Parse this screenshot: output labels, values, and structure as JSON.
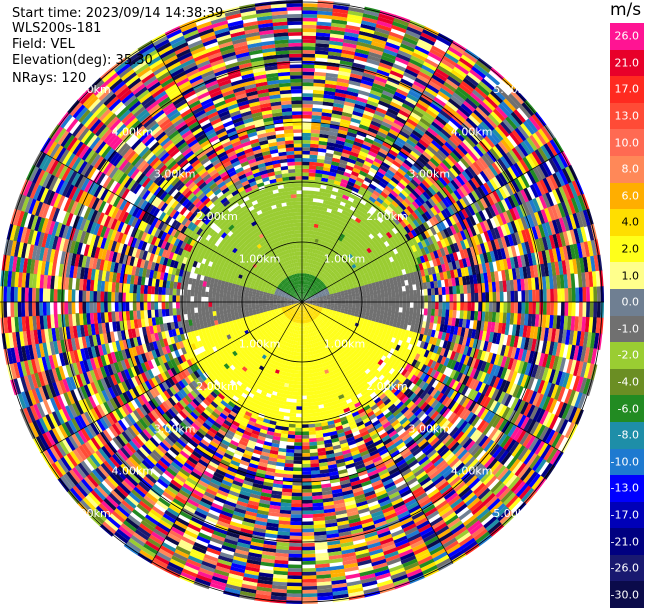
{
  "header": {
    "start_time": "Start time: 2023/09/14 14:38:39",
    "instrument": "WLS200s-181",
    "field": "Field: VEL",
    "elevation": "Elevation(deg): 35.30",
    "nrays": "NRays: 120"
  },
  "colorbar": {
    "unit": "m/s",
    "bins": [
      {
        "label": "26.0",
        "color": "#ff1493"
      },
      {
        "label": "21.0",
        "color": "#e8002a"
      },
      {
        "label": "17.0",
        "color": "#ff2a20"
      },
      {
        "label": "13.0",
        "color": "#ff4b36"
      },
      {
        "label": "10.0",
        "color": "#ff6a52"
      },
      {
        "label": "8.0",
        "color": "#ff8858"
      },
      {
        "label": "6.0",
        "color": "#ffae00"
      },
      {
        "label": "4.0",
        "color": "#ffde00"
      },
      {
        "label": "2.0",
        "color": "#ffff1a"
      },
      {
        "label": "1.0",
        "color": "#ffff8c"
      },
      {
        "label": "0.0",
        "color": "#6f7f92"
      },
      {
        "label": "-1.0",
        "color": "#707070"
      },
      {
        "label": "-2.0",
        "color": "#9acd32"
      },
      {
        "label": "-4.0",
        "color": "#6b8e23"
      },
      {
        "label": "-6.0",
        "color": "#228b22"
      },
      {
        "label": "-8.0",
        "color": "#1e8ea8"
      },
      {
        "label": "-10.0",
        "color": "#1e7ad0"
      },
      {
        "label": "-13.0",
        "color": "#0000ff"
      },
      {
        "label": "-17.0",
        "color": "#0000b8"
      },
      {
        "label": "-21.0",
        "color": "#000080"
      },
      {
        "label": "-26.0",
        "color": "#191970"
      },
      {
        "label": "-30.0",
        "color": "#0b0b4a"
      }
    ]
  },
  "chart_data": {
    "type": "heatmap",
    "projection": "polar PPI",
    "n_rays": 120,
    "range_ring_labels": [
      "1.00km",
      "2.00km",
      "3.00km",
      "4.00km",
      "5.00km"
    ],
    "radial_lines_deg": [
      0,
      30,
      60,
      90,
      120,
      150,
      180,
      210,
      240,
      270,
      300,
      330
    ],
    "clean_data_extent_km": 2.0,
    "noise_beyond_km": 2.0,
    "regions": [
      {
        "sector_deg": [
          300,
          60
        ],
        "range_km": [
          0,
          0.45
        ],
        "value_ms": -6.0,
        "note": "dark green core"
      },
      {
        "sector_deg": [
          285,
          75
        ],
        "range_km": [
          0.45,
          2.0
        ],
        "value_ms": -2.0
      },
      {
        "sector_deg": [
          75,
          105
        ],
        "range_km": [
          0,
          2.0
        ],
        "value_ms": -1.0
      },
      {
        "sector_deg": [
          255,
          285
        ],
        "range_km": [
          0,
          2.0
        ],
        "value_ms": -1.0
      },
      {
        "sector_deg": [
          105,
          255
        ],
        "range_km": [
          0,
          0.35
        ],
        "value_ms": 4.0,
        "note": "orange core"
      },
      {
        "sector_deg": [
          105,
          255
        ],
        "range_km": [
          0.35,
          2.0
        ],
        "value_ms": 2.0
      }
    ]
  }
}
